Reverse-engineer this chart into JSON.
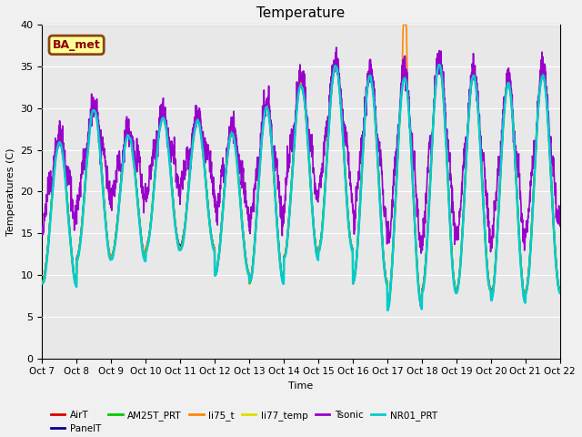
{
  "title": "Temperature",
  "xlabel": "Time",
  "ylabel": "Temperatures (C)",
  "ylim": [
    0,
    40
  ],
  "xlim": [
    0,
    15
  ],
  "plot_bg_color": "#e8e8e8",
  "fig_bg_color": "#f0f0f0",
  "annotation_text": "BA_met",
  "annotation_facecolor": "#ffff99",
  "annotation_edgecolor": "#8B4513",
  "annotation_textcolor": "#8B0000",
  "series_order": [
    "AirT",
    "PanelT",
    "AM25T_PRT",
    "li75_t",
    "li77_temp",
    "Tsonic",
    "NR01_PRT"
  ],
  "series": {
    "AirT": {
      "color": "#dd0000",
      "lw": 1.2,
      "zorder": 5
    },
    "PanelT": {
      "color": "#000099",
      "lw": 1.2,
      "zorder": 4
    },
    "AM25T_PRT": {
      "color": "#00cc00",
      "lw": 1.5,
      "zorder": 6
    },
    "li75_t": {
      "color": "#ff8800",
      "lw": 1.2,
      "zorder": 7
    },
    "li77_temp": {
      "color": "#dddd00",
      "lw": 1.5,
      "zorder": 3
    },
    "Tsonic": {
      "color": "#9900cc",
      "lw": 1.2,
      "zorder": 8
    },
    "NR01_PRT": {
      "color": "#00cccc",
      "lw": 1.8,
      "zorder": 9
    }
  },
  "xtick_positions": [
    0,
    1,
    2,
    3,
    4,
    5,
    6,
    7,
    8,
    9,
    10,
    11,
    12,
    13,
    14,
    15
  ],
  "xtick_labels": [
    "Oct 7",
    "Oct 8",
    "Oct 9",
    "Oct 10",
    "Oct 11",
    "Oct 12",
    "Oct 13",
    "Oct 14",
    "Oct 15",
    "Oct 16",
    "Oct 17",
    "Oct 18",
    "Oct 19",
    "Oct 20",
    "Oct 21",
    "Oct 22"
  ],
  "ytick_positions": [
    0,
    5,
    10,
    15,
    20,
    25,
    30,
    35,
    40
  ],
  "ytick_labels": [
    "0",
    "5",
    "10",
    "15",
    "20",
    "25",
    "30",
    "35",
    "40"
  ],
  "legend_order": [
    "AirT",
    "PanelT",
    "AM25T_PRT",
    "li75_t",
    "li77_temp",
    "Tsonic",
    "NR01_PRT"
  ]
}
